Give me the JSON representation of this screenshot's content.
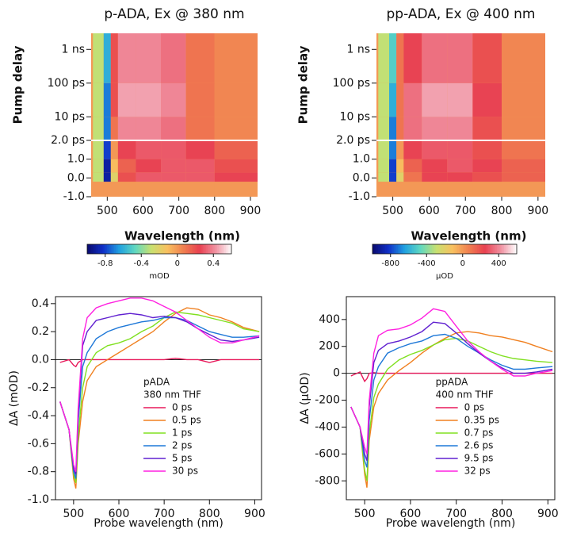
{
  "chart_data": [
    {
      "type": "heatmap",
      "title": "p-ADA, Ex @ 380 nm",
      "xlabel": "Wavelength (nm)",
      "ylabel": "Pump delay",
      "x_edges": [
        460,
        490,
        510,
        530,
        580,
        650,
        720,
        800,
        920
      ],
      "y_edges": [
        -1,
        -0.2,
        0.3,
        1,
        2,
        10,
        100,
        3000
      ],
      "z": [
        [
          0,
          0,
          0,
          0,
          0,
          0,
          0,
          0
        ],
        [
          -0.3,
          -0.9,
          -0.2,
          0.2,
          0.3,
          0.3,
          0.3,
          0.25
        ],
        [
          -0.3,
          -0.9,
          -0.1,
          0.15,
          0.25,
          0.3,
          0.3,
          0.2
        ],
        [
          -0.3,
          -0.8,
          0,
          0.25,
          0.3,
          0.3,
          0.25,
          0.15
        ],
        [
          -0.3,
          -0.7,
          0.1,
          0.4,
          0.4,
          0.35,
          0.1,
          0.05
        ],
        [
          -0.3,
          -0.7,
          0.2,
          0.45,
          0.45,
          0.4,
          0.1,
          0.05
        ],
        [
          -0.3,
          -0.6,
          0.2,
          0.4,
          0.4,
          0.35,
          0.1,
          0.05
        ]
      ],
      "xlim": [
        455,
        920
      ],
      "xticks": [
        500,
        600,
        700,
        800,
        900
      ],
      "ylim": [
        -1,
        3000
      ],
      "axis_break": 2,
      "yticks": [
        {
          "value": -1,
          "label": "-1.0"
        },
        {
          "value": 0,
          "label": "0.0"
        },
        {
          "value": 1,
          "label": "1.0"
        },
        {
          "value": 2,
          "label": "2.0 ps"
        },
        {
          "value": 10,
          "label": "10 ps"
        },
        {
          "value": 100,
          "label": "100 ps"
        },
        {
          "value": 1000,
          "label": "1 ns"
        }
      ],
      "zlim": [
        -1.0,
        0.6
      ],
      "zticks": [
        -0.8,
        -0.4,
        0,
        0.4
      ],
      "zlabel": "mOD",
      "colormap": [
        "#0a0a6e",
        "#1030c8",
        "#20a0e0",
        "#60d8c0",
        "#c8e070",
        "#f8c060",
        "#f08050",
        "#e84050",
        "#f090a0",
        "#ffffff"
      ]
    },
    {
      "type": "heatmap",
      "title": "pp-ADA, Ex @ 400 nm",
      "xlabel": "Wavelength (nm)",
      "ylabel": "Pump delay",
      "x_edges": [
        460,
        490,
        510,
        530,
        580,
        650,
        720,
        800,
        920
      ],
      "y_edges": [
        -1,
        -0.2,
        0.3,
        1,
        2,
        10,
        100,
        3000
      ],
      "z": [
        [
          0,
          0,
          0,
          0,
          0,
          0,
          0,
          0
        ],
        [
          -300,
          -800,
          -200,
          100,
          250,
          250,
          200,
          150
        ],
        [
          -300,
          -800,
          -100,
          150,
          250,
          300,
          250,
          150
        ],
        [
          -300,
          -700,
          0,
          250,
          300,
          300,
          200,
          100
        ],
        [
          -300,
          -700,
          100,
          350,
          400,
          400,
          200,
          50
        ],
        [
          -300,
          -600,
          100,
          350,
          450,
          450,
          250,
          50
        ],
        [
          -300,
          -500,
          100,
          250,
          350,
          350,
          200,
          50
        ]
      ],
      "xlim": [
        455,
        920
      ],
      "xticks": [
        500,
        600,
        700,
        800,
        900
      ],
      "ylim": [
        -1,
        3000
      ],
      "axis_break": 2,
      "yticks": [
        {
          "value": -1,
          "label": "-1.0"
        },
        {
          "value": 0,
          "label": "0.0"
        },
        {
          "value": 1,
          "label": "1.0"
        },
        {
          "value": 2,
          "label": "2.0 ps"
        },
        {
          "value": 10,
          "label": "10 ps"
        },
        {
          "value": 100,
          "label": "100 ps"
        },
        {
          "value": 1000,
          "label": "1 ns"
        }
      ],
      "zlim": [
        -1000,
        600
      ],
      "zticks": [
        -800,
        -400,
        0,
        400
      ],
      "zlabel": "µOD",
      "colormap": [
        "#0a0a6e",
        "#1030c8",
        "#20a0e0",
        "#60d8c0",
        "#c8e070",
        "#f8c060",
        "#f08050",
        "#e84050",
        "#f090a0",
        "#ffffff"
      ]
    },
    {
      "type": "line",
      "xlabel": "Probe wavelength (nm)",
      "ylabel": "ΔA (mOD)",
      "legend_title": [
        "pADA",
        "380 nm THF"
      ],
      "x": [
        470,
        490,
        500,
        505,
        510,
        520,
        530,
        550,
        575,
        600,
        625,
        650,
        675,
        700,
        725,
        750,
        775,
        800,
        825,
        850,
        875,
        910
      ],
      "series": [
        {
          "name": "0 ps",
          "color": "#e8195a",
          "values": [
            -0.02,
            0,
            -0.04,
            -0.05,
            -0.02,
            0,
            0,
            0,
            0,
            0,
            0,
            0,
            0,
            0,
            0.01,
            0,
            0,
            -0.02,
            0,
            0,
            0,
            0
          ]
        },
        {
          "name": "0.5 ps",
          "color": "#f08020",
          "values": [
            -0.3,
            -0.5,
            -0.85,
            -0.92,
            -0.6,
            -0.3,
            -0.15,
            -0.05,
            0,
            0.05,
            0.1,
            0.15,
            0.2,
            0.27,
            0.33,
            0.37,
            0.36,
            0.32,
            0.3,
            0.27,
            0.23,
            0.2
          ]
        },
        {
          "name": "1 ps",
          "color": "#80e020",
          "values": [
            -0.3,
            -0.5,
            -0.82,
            -0.88,
            -0.55,
            -0.2,
            -0.05,
            0.05,
            0.1,
            0.12,
            0.15,
            0.2,
            0.24,
            0.3,
            0.34,
            0.33,
            0.32,
            0.3,
            0.28,
            0.26,
            0.22,
            0.2
          ]
        },
        {
          "name": "2 ps",
          "color": "#1e78d8",
          "values": [
            -0.3,
            -0.5,
            -0.8,
            -0.85,
            -0.45,
            -0.05,
            0.05,
            0.15,
            0.2,
            0.23,
            0.25,
            0.27,
            0.28,
            0.3,
            0.3,
            0.28,
            0.24,
            0.2,
            0.18,
            0.16,
            0.16,
            0.17
          ]
        },
        {
          "name": "5 ps",
          "color": "#6020d0",
          "values": [
            -0.3,
            -0.5,
            -0.78,
            -0.82,
            -0.4,
            0.1,
            0.2,
            0.28,
            0.3,
            0.32,
            0.33,
            0.32,
            0.3,
            0.31,
            0.3,
            0.27,
            0.22,
            0.18,
            0.14,
            0.13,
            0.14,
            0.16
          ]
        },
        {
          "name": "30 ps",
          "color": "#ff20e0",
          "values": [
            -0.3,
            -0.5,
            -0.75,
            -0.8,
            -0.35,
            0.15,
            0.3,
            0.37,
            0.4,
            0.42,
            0.44,
            0.44,
            0.42,
            0.38,
            0.34,
            0.28,
            0.22,
            0.16,
            0.12,
            0.12,
            0.14,
            0.17
          ]
        }
      ],
      "xlim": [
        460,
        915
      ],
      "xticks": [
        500,
        600,
        700,
        800,
        900
      ],
      "ylim": [
        -1.0,
        0.45
      ],
      "yticks": [
        {
          "value": -1.0,
          "label": "-1.0"
        },
        -0.8,
        -0.6,
        -0.4,
        -0.2,
        {
          "value": 0,
          "label": "0.0"
        },
        0.2,
        0.4
      ],
      "zero_line": true,
      "legend_loc": "lower right"
    },
    {
      "type": "line",
      "xlabel": "Probe wavelength (nm)",
      "ylabel": "ΔA (µOD)",
      "legend_title": [
        "ppADA",
        "400 nm THF"
      ],
      "x": [
        470,
        490,
        500,
        505,
        510,
        520,
        530,
        550,
        575,
        600,
        625,
        650,
        675,
        700,
        725,
        750,
        775,
        800,
        825,
        850,
        875,
        910
      ],
      "series": [
        {
          "name": "0 ps",
          "color": "#e8195a",
          "values": [
            -20,
            10,
            -60,
            -40,
            0,
            5,
            0,
            0,
            0,
            0,
            0,
            0,
            0,
            0,
            0,
            0,
            0,
            0,
            0,
            0,
            0,
            0
          ]
        },
        {
          "name": "0.35 ps",
          "color": "#f08020",
          "values": [
            -250,
            -400,
            -750,
            -850,
            -500,
            -250,
            -150,
            -50,
            20,
            80,
            150,
            210,
            260,
            300,
            310,
            300,
            280,
            270,
            250,
            230,
            200,
            160
          ]
        },
        {
          "name": "0.7 ps",
          "color": "#80e020",
          "values": [
            -250,
            -400,
            -720,
            -800,
            -450,
            -180,
            -80,
            30,
            100,
            140,
            170,
            210,
            250,
            260,
            240,
            200,
            160,
            130,
            110,
            100,
            90,
            80
          ]
        },
        {
          "name": "2.6 ps",
          "color": "#1e78d8",
          "values": [
            -250,
            -400,
            -650,
            -700,
            -350,
            -50,
            50,
            150,
            190,
            220,
            240,
            280,
            290,
            260,
            200,
            150,
            100,
            60,
            30,
            30,
            40,
            50
          ]
        },
        {
          "name": "9.5 ps",
          "color": "#6020d0",
          "values": [
            -250,
            -400,
            -600,
            -650,
            -250,
            80,
            170,
            220,
            240,
            270,
            310,
            380,
            370,
            300,
            220,
            150,
            90,
            40,
            0,
            0,
            10,
            30
          ]
        },
        {
          "name": "32 ps",
          "color": "#ff20e0",
          "values": [
            -250,
            -400,
            -550,
            -600,
            -200,
            150,
            280,
            320,
            330,
            360,
            410,
            480,
            460,
            350,
            240,
            160,
            90,
            30,
            -20,
            -20,
            0,
            20
          ]
        }
      ],
      "xlim": [
        460,
        915
      ],
      "xticks": [
        500,
        600,
        700,
        800,
        900
      ],
      "ylim": [
        -940,
        570
      ],
      "yticks": [
        -800,
        -600,
        -400,
        -200,
        0,
        200,
        400
      ],
      "zero_line": true,
      "legend_loc": "lower right"
    }
  ]
}
